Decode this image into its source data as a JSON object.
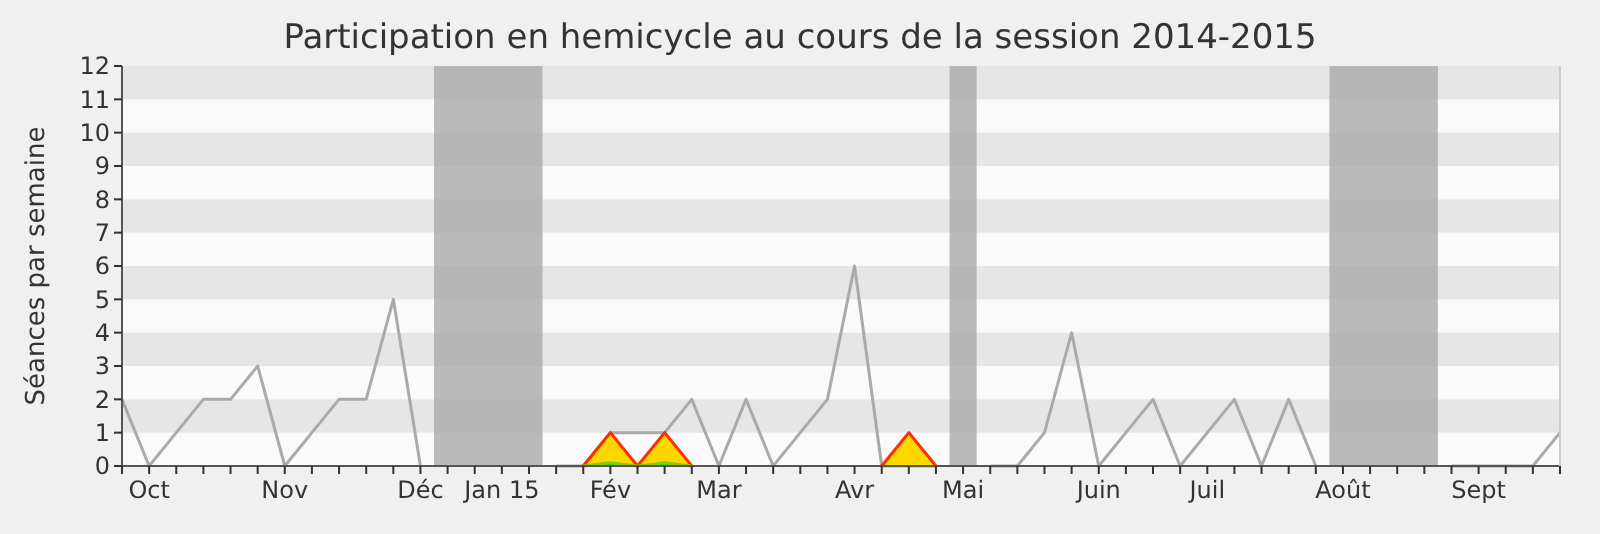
{
  "chart_data": {
    "type": "line",
    "title": "Participation en hemicycle au cours de la session 2014-2015",
    "ylabel": "Séances par semaine",
    "categories": [
      null,
      "Oct",
      null,
      null,
      null,
      null,
      "Nov",
      null,
      null,
      null,
      null,
      "Déc",
      null,
      null,
      "Jan 15",
      null,
      null,
      null,
      "Fév",
      null,
      null,
      null,
      "Mar",
      null,
      null,
      null,
      null,
      "Avr",
      null,
      null,
      null,
      "Mai",
      null,
      null,
      null,
      null,
      "Juin",
      null,
      null,
      null,
      "Juil",
      null,
      null,
      null,
      null,
      "Août",
      null,
      null,
      null,
      null,
      "Sept",
      null,
      null,
      null
    ],
    "series": [
      {
        "color": "#aaaaaa",
        "values": [
          2,
          0,
          1,
          2,
          2,
          3,
          0,
          1,
          2,
          2,
          5,
          0,
          null,
          null,
          null,
          null,
          0,
          0,
          1,
          1,
          1,
          2,
          0,
          2,
          0,
          1,
          2,
          6,
          0,
          0,
          0,
          null,
          0,
          0,
          1,
          4,
          0,
          1,
          2,
          0,
          1,
          2,
          0,
          2,
          0,
          null,
          null,
          null,
          null,
          0,
          0,
          0,
          0,
          1
        ]
      },
      {
        "type": "area",
        "color": "#ffd700",
        "values": [
          null,
          null,
          null,
          null,
          null,
          null,
          null,
          null,
          null,
          null,
          null,
          null,
          null,
          null,
          null,
          null,
          null,
          0,
          1,
          0,
          1,
          0,
          null,
          null,
          null,
          null,
          null,
          null,
          0,
          1,
          0,
          null,
          null,
          null,
          null,
          null,
          null,
          null,
          null,
          null,
          null,
          null,
          null,
          null,
          null,
          null,
          null,
          null,
          null,
          null,
          null,
          null,
          null,
          null
        ]
      },
      {
        "type": "area",
        "color": "#00cc00",
        "values": [
          null,
          null,
          null,
          null,
          null,
          null,
          null,
          null,
          null,
          null,
          null,
          null,
          null,
          null,
          null,
          null,
          null,
          0,
          0.1,
          0,
          0.1,
          0,
          null,
          null,
          null,
          null,
          null,
          null,
          null,
          null,
          null,
          null,
          null,
          null,
          null,
          null,
          null,
          null,
          null,
          null,
          null,
          null,
          null,
          null,
          null,
          null,
          null,
          null,
          null,
          null,
          null,
          null,
          null,
          null
        ]
      }
    ],
    "ylim": [
      0,
      12
    ],
    "yticks": [
      0,
      1,
      2,
      3,
      4,
      5,
      6,
      7,
      8,
      9,
      10,
      11,
      12
    ]
  }
}
